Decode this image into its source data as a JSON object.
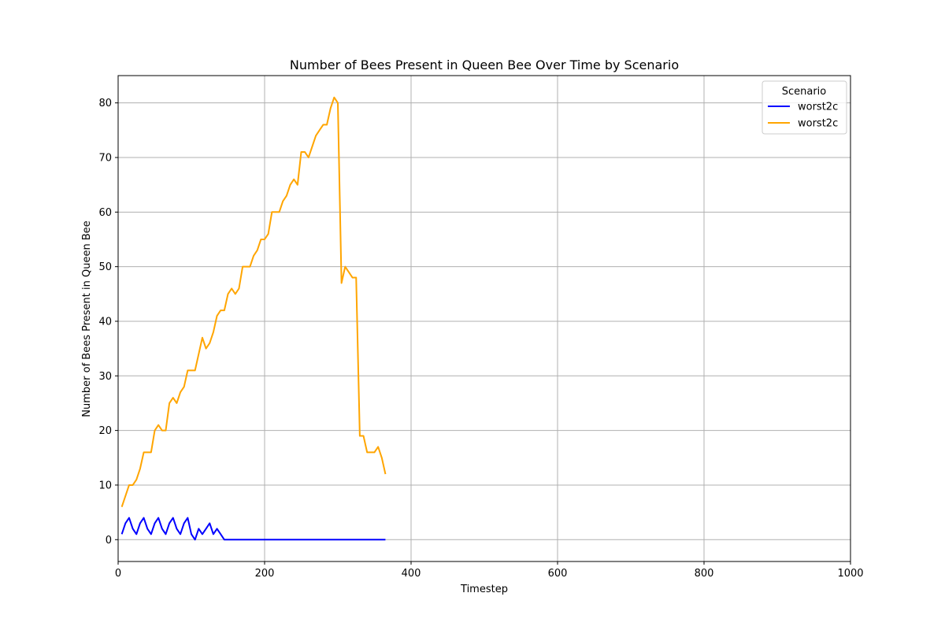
{
  "chart_data": {
    "type": "line",
    "title": "Number of Bees Present in Queen Bee Over Time by Scenario",
    "xlabel": "Timestep",
    "ylabel": "Number of Bees Present in Queen Bee",
    "xlim": [
      0,
      1000
    ],
    "ylim": [
      -4,
      85
    ],
    "xticks": [
      0,
      200,
      400,
      600,
      800,
      1000
    ],
    "yticks": [
      0,
      10,
      20,
      30,
      40,
      50,
      60,
      70,
      80
    ],
    "grid": true,
    "legend": {
      "title": "Scenario",
      "placement": "top-right"
    },
    "series": [
      {
        "name": "worst2c",
        "color": "#0000ff",
        "x": [
          5,
          10,
          15,
          20,
          25,
          30,
          35,
          40,
          45,
          50,
          55,
          60,
          65,
          70,
          75,
          80,
          85,
          90,
          95,
          100,
          105,
          110,
          115,
          120,
          125,
          130,
          135,
          140,
          145,
          150,
          200,
          250,
          300,
          350,
          365
        ],
        "y": [
          1,
          3,
          4,
          2,
          1,
          3,
          4,
          2,
          1,
          3,
          4,
          2,
          1,
          3,
          4,
          2,
          1,
          3,
          4,
          1,
          0,
          2,
          1,
          2,
          3,
          1,
          2,
          1,
          0,
          0,
          0,
          0,
          0,
          0,
          0
        ]
      },
      {
        "name": "worst2c",
        "color": "#ffa500",
        "x": [
          5,
          10,
          15,
          20,
          25,
          30,
          35,
          40,
          45,
          50,
          55,
          60,
          65,
          70,
          75,
          80,
          85,
          90,
          95,
          100,
          105,
          110,
          115,
          120,
          125,
          130,
          135,
          140,
          145,
          150,
          155,
          160,
          165,
          170,
          175,
          180,
          185,
          190,
          195,
          200,
          205,
          210,
          215,
          220,
          225,
          230,
          235,
          240,
          245,
          250,
          255,
          260,
          265,
          270,
          275,
          280,
          285,
          290,
          295,
          300,
          305,
          310,
          315,
          320,
          325,
          330,
          335,
          340,
          345,
          350,
          355,
          360,
          365
        ],
        "y": [
          6,
          8,
          10,
          10,
          11,
          13,
          16,
          16,
          16,
          20,
          21,
          20,
          20,
          25,
          26,
          25,
          27,
          28,
          31,
          31,
          31,
          34,
          37,
          35,
          36,
          38,
          41,
          42,
          42,
          45,
          46,
          45,
          46,
          50,
          50,
          50,
          52,
          53,
          55,
          55,
          56,
          60,
          60,
          60,
          62,
          63,
          65,
          66,
          65,
          71,
          71,
          70,
          72,
          74,
          75,
          76,
          76,
          79,
          81,
          80,
          47,
          50,
          49,
          48,
          48,
          19,
          19,
          16,
          16,
          16,
          17,
          15,
          12
        ]
      }
    ]
  }
}
